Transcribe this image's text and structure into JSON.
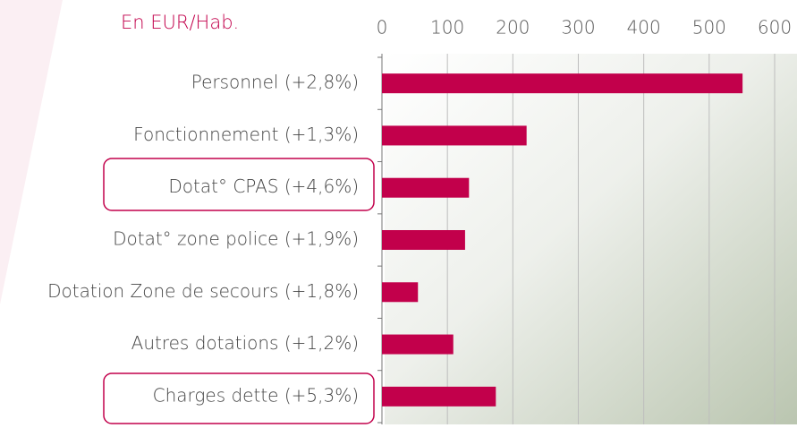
{
  "chart_data": {
    "type": "bar",
    "orientation": "horizontal",
    "title": "En EUR/Hab.",
    "categories": [
      "Personnel (+2,8%)",
      "Fonctionnement (+1,3%)",
      "Dotat° CPAS (+4,6%)",
      "Dotat° zone police (+1,9%)",
      "Dotation Zone de secours (+1,8%)",
      "Autres dotations (+1,2%)",
      "Charges dette (+5,3%)"
    ],
    "values": [
      551,
      221,
      133,
      127,
      55,
      109,
      174
    ],
    "color": "#c2004b",
    "xlim": [
      0,
      600
    ],
    "xticks": [
      0,
      100,
      200,
      300,
      400,
      500,
      600
    ],
    "grid": true
  }
}
